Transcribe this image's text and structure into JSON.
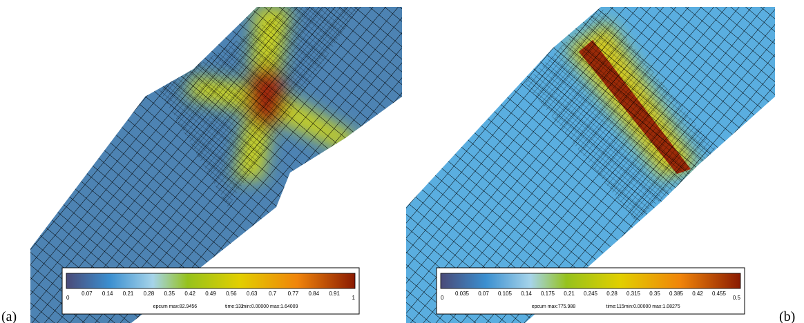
{
  "panels": [
    {
      "label": "(a)",
      "colorbar": {
        "ticks": [
          "0",
          "0.07",
          "0.14",
          "0.21",
          "0.28",
          "0.35",
          "0.42",
          "0.49",
          "0.56",
          "0.63",
          "0.7",
          "0.77",
          "0.84",
          "0.91",
          "1"
        ],
        "info": [
          "epcum max:82.9456",
          "time:132",
          "min:0.00000 max:1.64009"
        ]
      }
    },
    {
      "label": "(b)",
      "colorbar": {
        "ticks": [
          "0",
          "0.035",
          "0.07",
          "0.105",
          "0.14",
          "0.175",
          "0.21",
          "0.245",
          "0.28",
          "0.315",
          "0.35",
          "0.385",
          "0.42",
          "0.455",
          "0.5"
        ],
        "info": [
          "epcum max:775.988",
          "time:115",
          "min:0.00000 max:1.08275"
        ]
      }
    }
  ]
}
